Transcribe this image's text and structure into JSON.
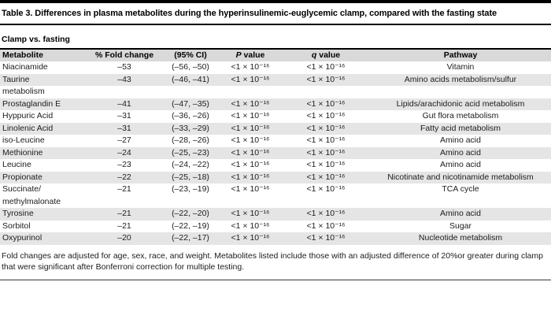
{
  "title": "Table 3. Differences in plasma metabolites during the hyperinsulinemic-euglycemic clamp, compared with the fasting state",
  "section_label": "Clamp vs. fasting",
  "colors": {
    "header_row_bg": "#d9d9d9",
    "stripe_row_bg": "#e5e5e5",
    "rule_color": "#000000",
    "text_color": "#1c1c1c"
  },
  "table": {
    "columns": [
      {
        "label": "Metabolite"
      },
      {
        "label": "% Fold change"
      },
      {
        "label": "(95% CI)"
      },
      {
        "italic": "P",
        "label": " value"
      },
      {
        "italic": "q",
        "label": " value"
      },
      {
        "label": "Pathway"
      }
    ],
    "rows": [
      {
        "metabolite": "Niacinamide",
        "fold": "–53",
        "ci": "(–56, –50)",
        "p": "<1 × 10⁻¹⁶",
        "q": "<1 × 10⁻¹⁶",
        "pathway": "Vitamin"
      },
      {
        "metabolite": "Taurine",
        "fold": "–43",
        "ci": "(–46, –41)",
        "p": "<1 × 10⁻¹⁶",
        "q": "<1 × 10⁻¹⁶",
        "pathway": "Amino acids metabolism/sulfur"
      },
      {
        "metabolite": "metabolism",
        "fold": "",
        "ci": "",
        "p": "",
        "q": "",
        "pathway": ""
      },
      {
        "metabolite": "Prostaglandin E",
        "fold": "–41",
        "ci": "(–47, –35)",
        "p": "<1 × 10⁻¹⁶",
        "q": "<1 × 10⁻¹⁶",
        "pathway": "Lipids/arachidonic acid metabolism"
      },
      {
        "metabolite": "Hyppuric Acid",
        "fold": "–31",
        "ci": "(–36, –26)",
        "p": "<1 × 10⁻¹⁶",
        "q": "<1 × 10⁻¹⁶",
        "pathway": "Gut flora metabolism"
      },
      {
        "metabolite": "Linolenic Acid",
        "fold": "–31",
        "ci": "(–33, –29)",
        "p": "<1 × 10⁻¹⁶",
        "q": "<1 × 10⁻¹⁶",
        "pathway": "Fatty acid metabolism"
      },
      {
        "metabolite": "iso-Leucine",
        "fold": "–27",
        "ci": "(–28, –26)",
        "p": "<1 × 10⁻¹⁶",
        "q": "<1 × 10⁻¹⁶",
        "pathway": "Amino acid"
      },
      {
        "metabolite": "Methionine",
        "fold": "–24",
        "ci": "(–25, –23)",
        "p": "<1 × 10⁻¹⁶",
        "q": "<1 × 10⁻¹⁶",
        "pathway": "Amino acid"
      },
      {
        "metabolite": "Leucine",
        "fold": "–23",
        "ci": "(–24, –22)",
        "p": "<1 × 10⁻¹⁶",
        "q": "<1 × 10⁻¹⁶",
        "pathway": "Amino acid"
      },
      {
        "metabolite": "Propionate",
        "fold": "–22",
        "ci": "(–25, –18)",
        "p": "<1 × 10⁻¹⁶",
        "q": "<1 × 10⁻¹⁶",
        "pathway": "Nicotinate and nicotinamide metabolism"
      },
      {
        "metabolite": "Succinate/",
        "fold": "–21",
        "ci": "(–23, –19)",
        "p": "<1 × 10⁻¹⁶",
        "q": "<1 × 10⁻¹⁶",
        "pathway": "TCA cycle"
      },
      {
        "metabolite": "methylmalonate",
        "fold": "",
        "ci": "",
        "p": "",
        "q": "",
        "pathway": ""
      },
      {
        "metabolite": "Tyrosine",
        "fold": "–21",
        "ci": "(–22, –20)",
        "p": "<1 × 10⁻¹⁶",
        "q": "<1 × 10⁻¹⁶",
        "pathway": "Amino acid"
      },
      {
        "metabolite": "Sorbitol",
        "fold": "–21",
        "ci": "(–22, –19)",
        "p": "<1 × 10⁻¹⁶",
        "q": "<1 × 10⁻¹⁶",
        "pathway": "Sugar"
      },
      {
        "metabolite": "Oxypurinol",
        "fold": "–20",
        "ci": "(–22, –17)",
        "p": "<1 × 10⁻¹⁶",
        "q": "<1 × 10⁻¹⁶",
        "pathway": "Nucleotide metabolism"
      }
    ]
  },
  "footnote": "Fold changes are adjusted for age, sex, race, and weight. Metabolites listed include those with an adjusted difference of 20%or greater during clamp that were significant after Bonferroni correction for multiple testing."
}
